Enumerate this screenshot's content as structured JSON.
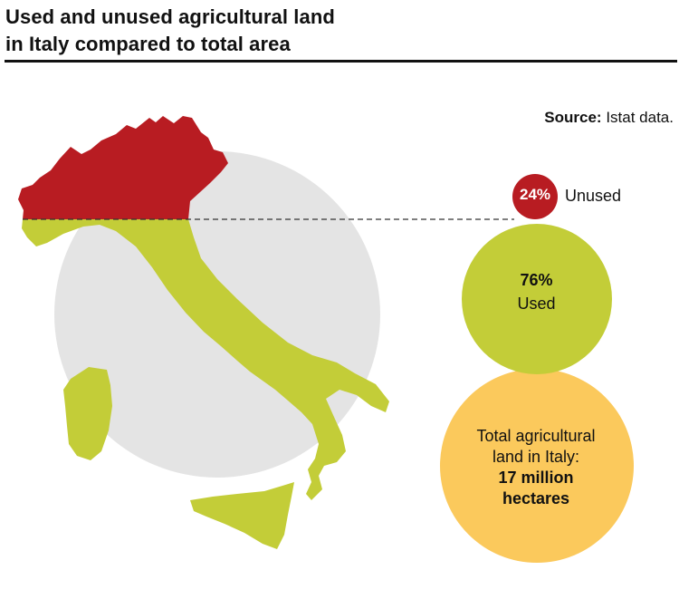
{
  "header": {
    "title_line1": "Used and unused agricultural land",
    "title_line2": "in Italy compared to total area"
  },
  "source": {
    "label": "Source:",
    "text": "Istat data."
  },
  "colors": {
    "unused": "#b81c22",
    "used": "#c3cd38",
    "total": "#fbc95c",
    "background_circle": "#e4e4e4"
  },
  "chart_data": {
    "type": "proportional-area",
    "unit": "million hectares",
    "total": {
      "label_line1": "Total agricultural",
      "label_line2": "land in Italy:",
      "value_line1": "17 million",
      "value_line2": "hectares",
      "value": 17
    },
    "segments": [
      {
        "key": "unused",
        "percent": 24,
        "percent_label": "24%",
        "label": "Unused"
      },
      {
        "key": "used",
        "percent": 76,
        "percent_label": "76%",
        "label": "Used"
      }
    ]
  }
}
